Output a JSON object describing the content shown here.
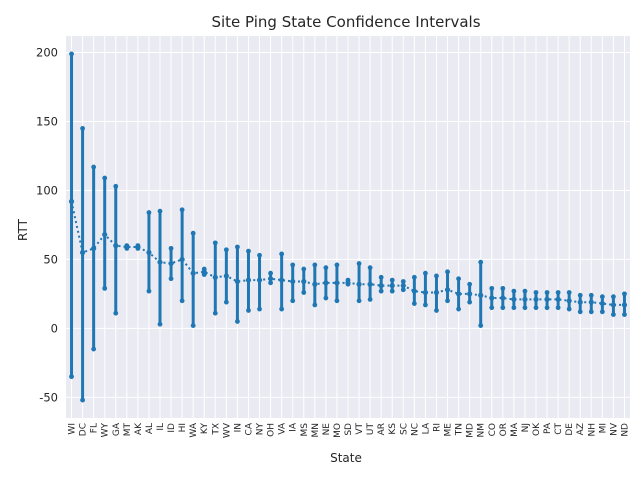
{
  "chart_data": {
    "type": "line",
    "title": "Site Ping State Confidence Intervals",
    "xlabel": "State",
    "ylabel": "RTT",
    "ylim": [
      -65,
      212
    ],
    "yticks": [
      -50,
      0,
      50,
      100,
      150,
      200
    ],
    "grid": true,
    "colors": {
      "series": "#1f77b4",
      "plot_bg": "#eaeaf2",
      "grid": "#ffffff"
    },
    "categories": [
      "WI",
      "DC",
      "FL",
      "WY",
      "GA",
      "MT",
      "AK",
      "AL",
      "IL",
      "ID",
      "HI",
      "WA",
      "KY",
      "TX",
      "WV",
      "IN",
      "CA",
      "NY",
      "OH",
      "VA",
      "IA",
      "MS",
      "MN",
      "NE",
      "MO",
      "SD",
      "VT",
      "UT",
      "AR",
      "KS",
      "SC",
      "NC",
      "LA",
      "RI",
      "ME",
      "TN",
      "MD",
      "NM",
      "CO",
      "OR",
      "MA",
      "NJ",
      "OK",
      "PA",
      "CT",
      "DE",
      "AZ",
      "NH",
      "MI",
      "NV",
      "ND"
    ],
    "series": [
      {
        "values": [
          92,
          55,
          58,
          68,
          60,
          59,
          59,
          55,
          48,
          47,
          50,
          40,
          41,
          37,
          38,
          34,
          35,
          35,
          36,
          35,
          34,
          34,
          32,
          33,
          33,
          33,
          32,
          32,
          31,
          31,
          31,
          27,
          26,
          26,
          28,
          25,
          25,
          24,
          22,
          22,
          21,
          21,
          21,
          21,
          21,
          20,
          19,
          19,
          18,
          17,
          17
        ],
        "ci_low": [
          -35,
          -52,
          -15,
          29,
          11,
          58,
          58,
          27,
          3,
          36,
          20,
          2,
          39,
          11,
          19,
          5,
          13,
          14,
          33,
          14,
          20,
          26,
          17,
          22,
          20,
          32,
          20,
          21,
          27,
          27,
          28,
          18,
          17,
          13,
          20,
          14,
          19,
          2,
          15,
          15,
          15,
          15,
          15,
          15,
          15,
          14,
          12,
          12,
          12,
          10,
          10
        ],
        "ci_high": [
          199,
          145,
          117,
          109,
          103,
          60,
          60,
          84,
          85,
          58,
          86,
          69,
          43,
          62,
          57,
          59,
          56,
          53,
          40,
          54,
          46,
          43,
          46,
          44,
          46,
          35,
          47,
          44,
          37,
          35,
          34,
          37,
          40,
          38,
          41,
          36,
          32,
          48,
          29,
          29,
          27,
          27,
          26,
          26,
          26,
          26,
          24,
          24,
          23,
          23,
          25
        ]
      }
    ]
  }
}
